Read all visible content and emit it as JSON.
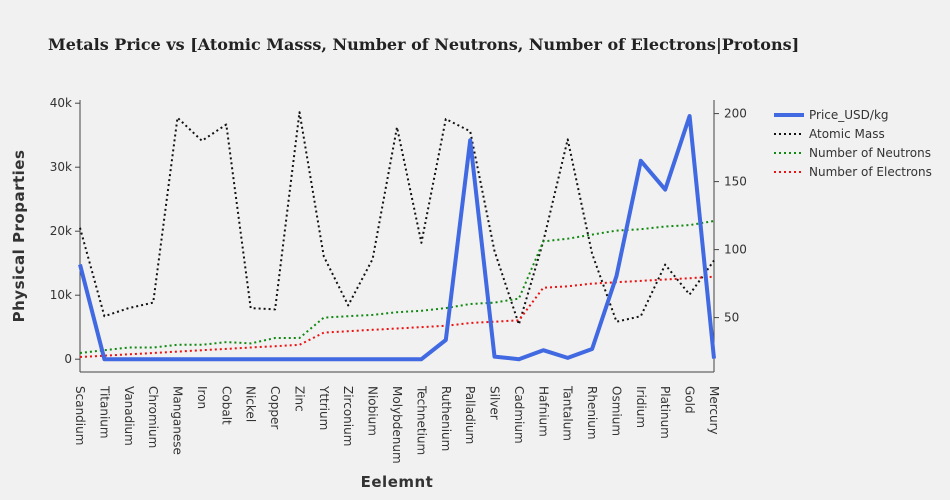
{
  "chart_data": {
    "type": "line",
    "title": "Metals Price vs [Atomic Masss, Number of Neutrons, Number of Electrons|Protons]",
    "xlabel": "Eelemnt",
    "ylabel": "Physical Proparties",
    "categories": [
      "Scandium",
      "Titanium",
      "Vanadium",
      "Chromium",
      "Manganese",
      "Iron",
      "Cobalt",
      "Nickel",
      "Copper",
      "Zinc",
      "Yttrium",
      "Zirconium",
      "Niobium",
      "Molybdenum",
      "Technetium",
      "Ruthenium",
      "Palladium",
      "Silver",
      "Cadmium",
      "Hafnium",
      "Tantalum",
      "Rhenium",
      "Osmium",
      "Iridium",
      "Platinum",
      "Gold",
      "Mercury"
    ],
    "y_left": {
      "range": [
        -2000,
        40500
      ],
      "ticks": [
        0,
        10000,
        20000,
        30000,
        40000
      ],
      "tick_labels": [
        "0",
        "10k",
        "20k",
        "30k",
        "40k"
      ]
    },
    "y_right": {
      "range": [
        10,
        210
      ],
      "ticks": [
        50,
        100,
        150,
        200
      ],
      "tick_labels": [
        "50",
        "100",
        "150",
        "200"
      ]
    },
    "series": [
      {
        "name": "Price_USD/kg",
        "axis": "left",
        "style": "solid",
        "color": "#4169e1",
        "values": [
          14800,
          0,
          0,
          0,
          0,
          0,
          0,
          0,
          0,
          0,
          0,
          0,
          0,
          0,
          0,
          3000,
          34200,
          400,
          0,
          1400,
          200,
          1600,
          13000,
          31000,
          26500,
          38000,
          100
        ]
      },
      {
        "name": "Atomic Mass",
        "axis": "right",
        "style": "dotted",
        "color": "#111111",
        "values": [
          116,
          51,
          57,
          61,
          197,
          180,
          192,
          57,
          56,
          201,
          95,
          59,
          93,
          190,
          105,
          196,
          187,
          99,
          45,
          106,
          181,
          97,
          47,
          51,
          89,
          67,
          92
        ]
      },
      {
        "name": "Number of Neutrons",
        "axis": "right",
        "style": "dotted",
        "color": "#118811",
        "values": [
          24,
          26,
          28,
          28,
          30,
          30,
          32,
          31,
          35,
          35,
          50,
          51,
          52,
          54,
          55,
          57,
          60,
          61,
          64,
          106,
          108,
          111,
          114,
          115,
          117,
          118,
          121
        ]
      },
      {
        "name": "Number of Electrons",
        "axis": "right",
        "style": "dotted",
        "color": "#ee1111",
        "values": [
          21,
          22,
          23,
          24,
          25,
          26,
          27,
          28,
          29,
          30,
          39,
          40,
          41,
          42,
          43,
          44,
          46,
          47,
          48,
          72,
          73,
          75,
          76,
          77,
          78,
          79,
          80
        ]
      }
    ],
    "legend": "top-right",
    "grid": false
  }
}
